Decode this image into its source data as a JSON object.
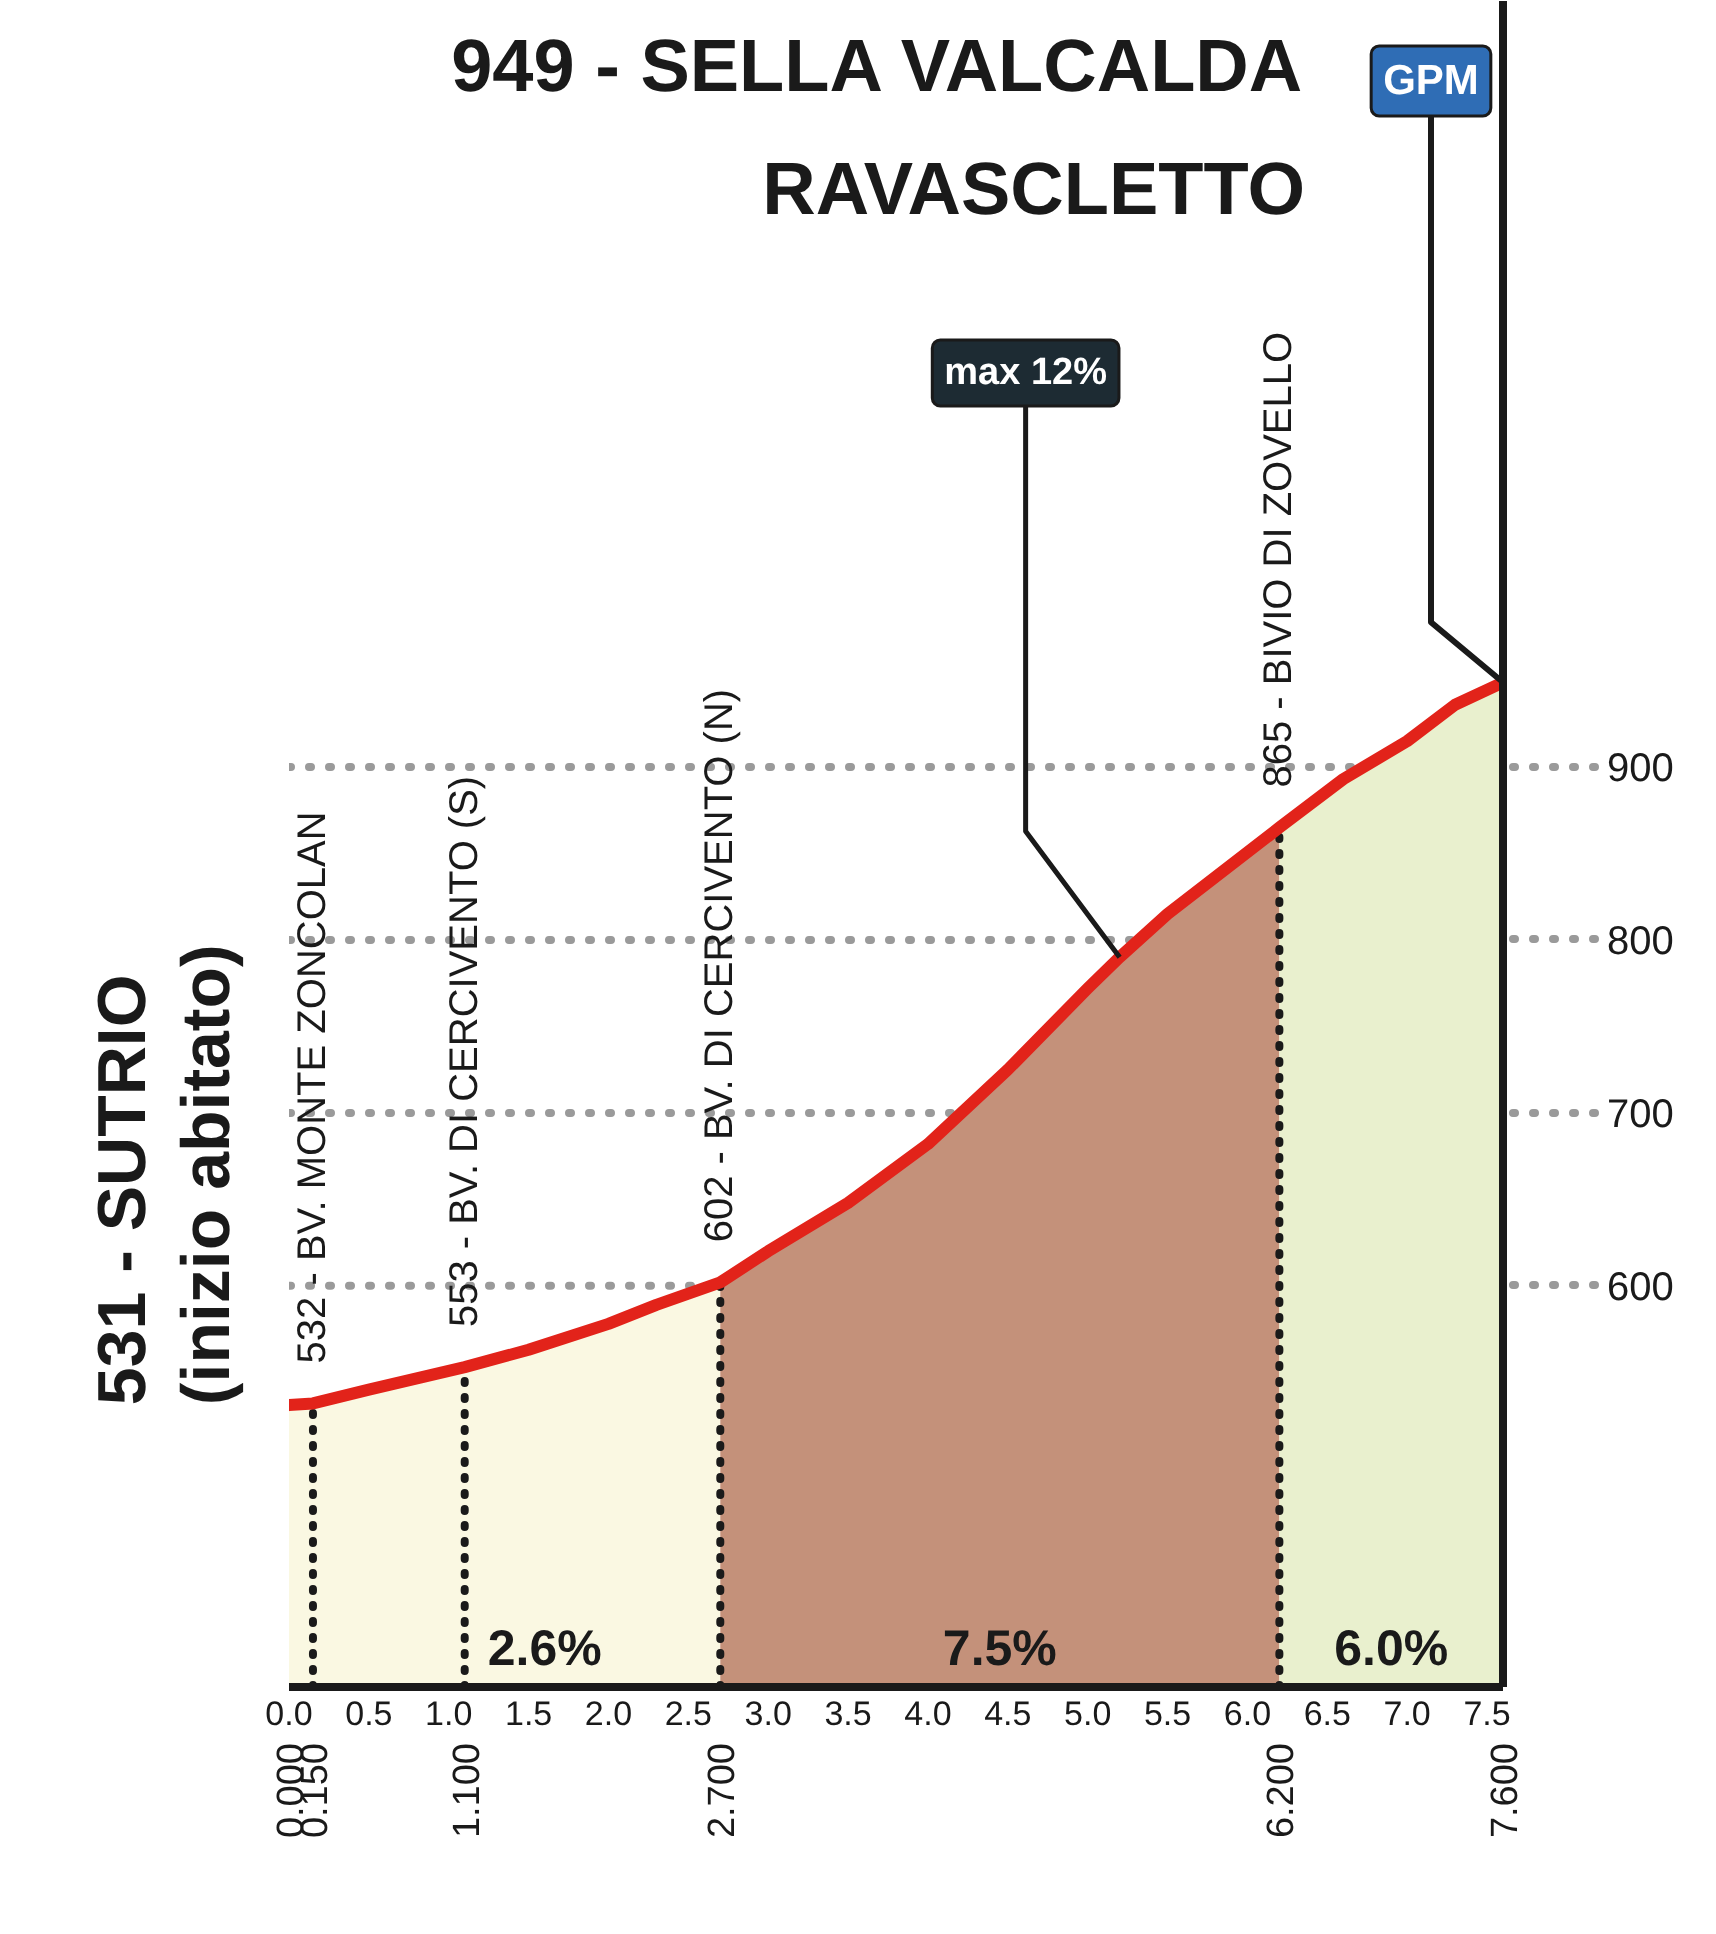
{
  "chart_data": {
    "type": "area",
    "title": "949 - SELLA VALCALDA\nRAVASCLETTO",
    "annotations": [
      {
        "text": "531 - SUTRIO\n(inizio abitato)",
        "x": 0,
        "y": 531
      },
      {
        "text": "532 - BV. MONTE ZONCOLAN",
        "x": 0.15,
        "y": 532
      },
      {
        "text": "553 - BV. DI CERCIVENTO (S)",
        "x": 1.1,
        "y": 553
      },
      {
        "text": "602 - BV. DI CERCIVENTO (N)",
        "x": 2.7,
        "y": 602
      },
      {
        "text": "865 - BIVIO DI ZOVELLO",
        "x": 6.2,
        "y": 865
      },
      {
        "text": "GPM",
        "x": 7.6,
        "y": 949
      },
      {
        "text": "max 12%",
        "x": 5.2,
        "y": 790
      }
    ],
    "series": [
      {
        "name": "2.6%",
        "color": "#faf8e2",
        "x": [
          0,
          0.15,
          0.5,
          1.1,
          1.5,
          2.0,
          2.3,
          2.7
        ],
        "values": [
          531,
          532,
          540,
          553,
          563,
          578,
          589,
          602
        ]
      },
      {
        "name": "7.5%",
        "color": "#c4917a",
        "x": [
          2.7,
          3.0,
          3.5,
          4.0,
          4.5,
          5.0,
          5.2,
          5.5,
          6.2
        ],
        "values": [
          602,
          620,
          648,
          682,
          725,
          772,
          790,
          815,
          865
        ]
      },
      {
        "name": "6.0%",
        "color": "#e9f0ce",
        "x": [
          6.2,
          6.6,
          7.0,
          7.3,
          7.6
        ],
        "values": [
          865,
          893,
          915,
          936,
          949
        ]
      },
      {
        "type": "line",
        "color": "#e2231a",
        "x": [
          0,
          0.15,
          0.5,
          1.1,
          1.5,
          2.0,
          2.3,
          2.7,
          3.0,
          3.5,
          4.0,
          4.5,
          5.0,
          5.2,
          5.5,
          6.2,
          6.6,
          7.0,
          7.3,
          7.6
        ],
        "values": [
          531,
          532,
          540,
          553,
          563,
          578,
          589,
          602,
          620,
          648,
          682,
          725,
          772,
          790,
          815,
          865,
          893,
          915,
          936,
          949
        ]
      }
    ],
    "xlim": [
      0,
      7.6
    ],
    "xticks": [
      {
        "value": 0,
        "label": "0.0"
      },
      0.5,
      {
        "value": 1,
        "label": "1.0"
      },
      1.5,
      {
        "value": 2,
        "label": "2.0"
      },
      2.5,
      {
        "value": 3,
        "label": "3.0"
      },
      3.5,
      {
        "value": 4,
        "label": "4.0"
      },
      4.5,
      {
        "value": 5,
        "label": "5.0"
      },
      5.5,
      {
        "value": 6,
        "label": "6.0"
      },
      6.5,
      {
        "value": 7,
        "label": "7.0"
      },
      7.5
    ],
    "x2lim": [
      0,
      7.6
    ],
    "x2ticks": [
      {
        "value": 0,
        "label": "0.000"
      },
      {
        "value": 0.15,
        "label": "0.150"
      },
      {
        "value": 1.1,
        "label": "1.100"
      },
      {
        "value": 2.7,
        "label": "2.700"
      },
      {
        "value": 6.2,
        "label": "6.200"
      },
      {
        "value": 7.6,
        "label": "7.600"
      }
    ],
    "ylim": [
      368,
      1343
    ],
    "yticks": [
      600,
      700,
      800,
      900
    ],
    "grid": "y",
    "ref_lines": [
      {
        "axis": "x",
        "value": 0.15,
        "color": "#1a1a1a",
        "line_style": "dotted"
      },
      {
        "axis": "x",
        "value": 1.1,
        "color": "#1a1a1a",
        "line_style": "dotted"
      },
      {
        "axis": "x",
        "value": 2.7,
        "color": "#1a1a1a",
        "line_style": "dotted"
      },
      {
        "axis": "x",
        "value": 6.2,
        "color": "#1a1a1a",
        "line_style": "dotted"
      }
    ]
  }
}
